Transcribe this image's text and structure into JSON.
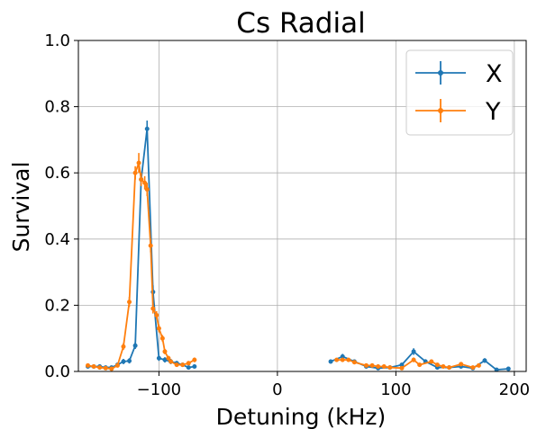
{
  "chart_data": {
    "type": "line",
    "title": "Cs Radial",
    "xlabel": "Detuning (kHz)",
    "ylabel": "Survival",
    "xlim": [
      -168,
      210
    ],
    "ylim": [
      0,
      1.0
    ],
    "x_ticks": [
      -100,
      0,
      100,
      200
    ],
    "y_ticks": [
      0.0,
      0.2,
      0.4,
      0.6,
      0.8,
      1.0
    ],
    "x_tick_labels": [
      "−100",
      "0",
      "100",
      "200"
    ],
    "y_tick_labels": [
      "0.0",
      "0.2",
      "0.4",
      "0.6",
      "0.8",
      "1.0"
    ],
    "grid": true,
    "legend_position": "top-right",
    "series": [
      {
        "name": "X",
        "color": "#1f77b4",
        "segments": [
          {
            "x": [
              -160,
              -155,
              -150,
              -145,
              -140,
              -135,
              -130,
              -125,
              -120,
              -115,
              -110,
              -105,
              -100,
              -95,
              -90,
              -85,
              -80,
              -75,
              -70
            ],
            "y": [
              0.015,
              0.015,
              0.015,
              0.012,
              0.012,
              0.02,
              0.03,
              0.032,
              0.078,
              0.58,
              0.733,
              0.24,
              0.04,
              0.035,
              0.03,
              0.025,
              0.02,
              0.012,
              0.015
            ],
            "err": [
              0.005,
              0.005,
              0.005,
              0.005,
              0.005,
              0.005,
              0.008,
              0.008,
              0.01,
              0.02,
              0.025,
              0.02,
              0.008,
              0.008,
              0.008,
              0.006,
              0.006,
              0.005,
              0.005
            ]
          },
          {
            "x": [
              45,
              55,
              65,
              75,
              85,
              95,
              105,
              115,
              125,
              135,
              145,
              155,
              165,
              175,
              185,
              195
            ],
            "y": [
              0.03,
              0.045,
              0.03,
              0.015,
              0.01,
              0.012,
              0.02,
              0.06,
              0.03,
              0.012,
              0.012,
              0.015,
              0.01,
              0.033,
              0.005,
              0.008
            ],
            "err": [
              0.006,
              0.008,
              0.006,
              0.005,
              0.004,
              0.005,
              0.006,
              0.01,
              0.007,
              0.005,
              0.005,
              0.005,
              0.004,
              0.007,
              0.003,
              0.004
            ]
          }
        ]
      },
      {
        "name": "Y",
        "color": "#ff7f0e",
        "segments": [
          {
            "x": [
              -160,
              -155,
              -150,
              -145,
              -140,
              -135,
              -130,
              -125,
              -120,
              -117,
              -115,
              -112,
              -110,
              -107,
              -105,
              -102,
              -100,
              -97,
              -95,
              -92,
              -90,
              -85,
              -80,
              -75,
              -70
            ],
            "y": [
              0.018,
              0.015,
              0.012,
              0.01,
              0.008,
              0.018,
              0.075,
              0.21,
              0.6,
              0.63,
              0.58,
              0.57,
              0.55,
              0.38,
              0.19,
              0.17,
              0.13,
              0.1,
              0.06,
              0.04,
              0.03,
              0.02,
              0.02,
              0.025,
              0.035
            ],
            "err": [
              0.005,
              0.005,
              0.005,
              0.004,
              0.004,
              0.006,
              0.01,
              0.015,
              0.02,
              0.03,
              0.02,
              0.02,
              0.02,
              0.02,
              0.015,
              0.012,
              0.012,
              0.01,
              0.008,
              0.007,
              0.006,
              0.005,
              0.005,
              0.005,
              0.007
            ]
          },
          {
            "x": [
              50,
              55,
              60,
              65,
              75,
              80,
              85,
              90,
              95,
              105,
              115,
              120,
              130,
              135,
              140,
              145,
              155,
              165,
              170
            ],
            "y": [
              0.035,
              0.035,
              0.035,
              0.028,
              0.018,
              0.018,
              0.015,
              0.015,
              0.012,
              0.01,
              0.035,
              0.02,
              0.03,
              0.02,
              0.015,
              0.012,
              0.022,
              0.012,
              0.018
            ],
            "err": [
              0.006,
              0.006,
              0.006,
              0.005,
              0.005,
              0.005,
              0.004,
              0.004,
              0.004,
              0.004,
              0.007,
              0.005,
              0.006,
              0.005,
              0.004,
              0.004,
              0.005,
              0.004,
              0.005
            ]
          }
        ]
      }
    ]
  }
}
